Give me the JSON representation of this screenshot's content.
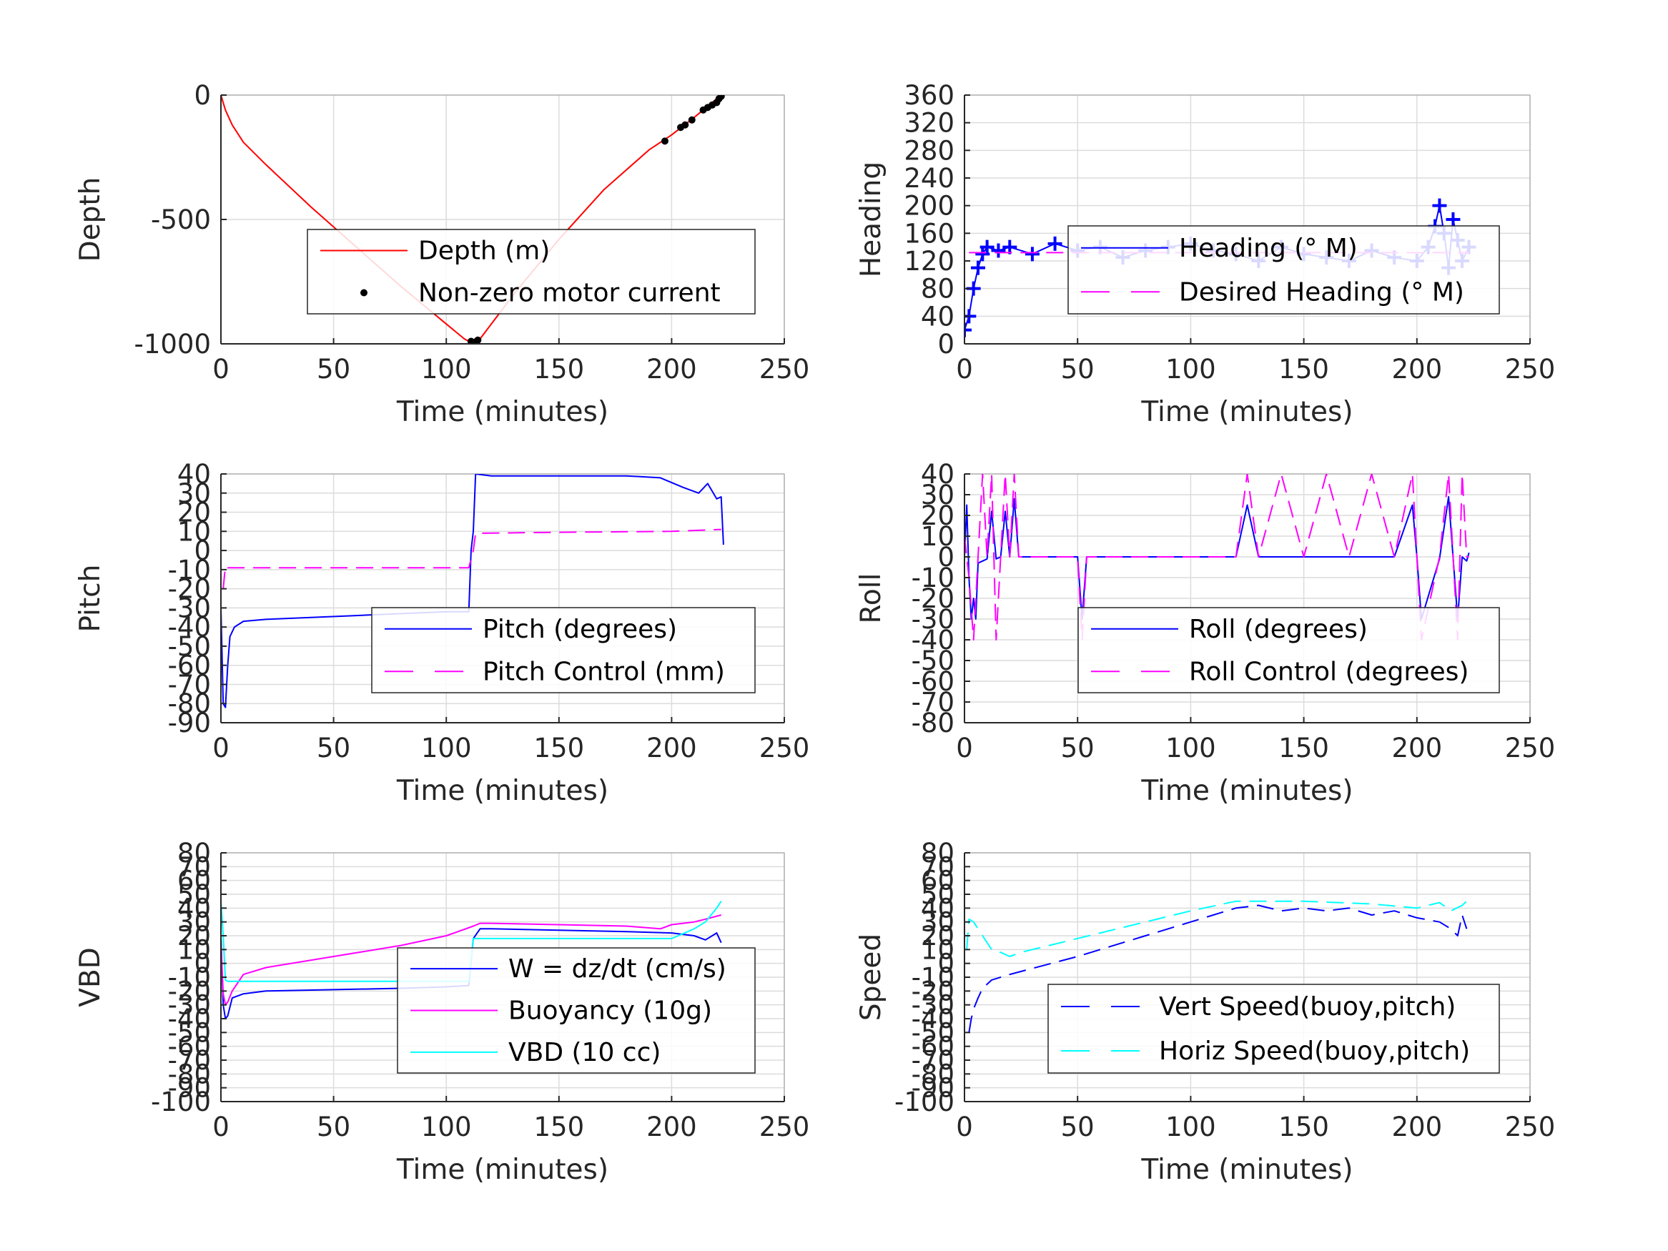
{
  "chart_data": [
    {
      "id": "depth",
      "type": "line",
      "xlabel": "Time (minutes)",
      "ylabel": "Depth",
      "xlim": [
        0,
        250
      ],
      "ylim": [
        -1000,
        0
      ],
      "xticks": [
        0,
        50,
        100,
        150,
        200,
        250
      ],
      "yticks": [
        -1000,
        -500,
        0
      ],
      "ytick_labels": [
        "-1000",
        "-500",
        "0"
      ],
      "grid": true,
      "legend_position": "lower-right",
      "series": [
        {
          "name": "Depth (m)",
          "color": "#ff0000",
          "style": "solid",
          "marker": "none",
          "x": [
            0,
            2,
            5,
            10,
            20,
            40,
            60,
            80,
            100,
            108,
            112,
            115,
            130,
            150,
            170,
            190,
            200,
            210,
            222
          ],
          "y": [
            0,
            -60,
            -120,
            -190,
            -280,
            -450,
            -610,
            -770,
            -920,
            -980,
            -1000,
            -980,
            -800,
            -580,
            -380,
            -220,
            -160,
            -90,
            0
          ]
        },
        {
          "name": "Non-zero motor current",
          "color": "#000000",
          "style": "none",
          "marker": "dot",
          "x": [
            111,
            112,
            113,
            114,
            197,
            204,
            206,
            209,
            214,
            216,
            218,
            220,
            221,
            222
          ],
          "y": [
            -990,
            -995,
            -992,
            -985,
            -185,
            -130,
            -120,
            -100,
            -60,
            -50,
            -40,
            -30,
            -15,
            -5
          ]
        }
      ]
    },
    {
      "id": "heading",
      "type": "line",
      "xlabel": "Time (minutes)",
      "ylabel": "Heading",
      "xlim": [
        0,
        250
      ],
      "ylim": [
        0,
        360
      ],
      "xticks": [
        0,
        50,
        100,
        150,
        200,
        250
      ],
      "yticks": [
        0,
        40,
        80,
        120,
        160,
        200,
        240,
        280,
        320,
        360
      ],
      "ytick_labels": [
        "0",
        "40",
        "80",
        "120",
        "160",
        "200",
        "240",
        "280",
        "320",
        "360"
      ],
      "grid": true,
      "legend_position": "upper-right",
      "series": [
        {
          "name": "Heading (° M)",
          "color": "#0000ff",
          "style": "solid",
          "marker": "plus",
          "x": [
            0,
            2,
            4,
            6,
            8,
            10,
            15,
            20,
            30,
            40,
            50,
            60,
            70,
            80,
            90,
            100,
            110,
            120,
            130,
            140,
            150,
            160,
            170,
            180,
            190,
            200,
            205,
            208,
            210,
            212,
            214,
            216,
            218,
            220,
            223
          ],
          "y": [
            20,
            40,
            80,
            110,
            130,
            140,
            135,
            140,
            130,
            145,
            135,
            140,
            125,
            135,
            140,
            145,
            135,
            130,
            120,
            140,
            130,
            125,
            120,
            135,
            125,
            120,
            140,
            170,
            200,
            160,
            110,
            180,
            150,
            120,
            140
          ]
        },
        {
          "name": "Desired Heading (° M)",
          "color": "#ff00ff",
          "style": "dashed",
          "marker": "none",
          "x": [
            2,
            223
          ],
          "y": [
            132,
            132
          ]
        }
      ]
    },
    {
      "id": "pitch",
      "type": "line",
      "xlabel": "Time (minutes)",
      "ylabel": "Pitch",
      "xlim": [
        0,
        250
      ],
      "ylim": [
        -90,
        40
      ],
      "xticks": [
        0,
        50,
        100,
        150,
        200,
        250
      ],
      "yticks": [
        -90,
        -80,
        -70,
        -60,
        -50,
        -40,
        -30,
        -20,
        -10,
        0,
        10,
        20,
        30,
        40
      ],
      "ytick_labels": [
        "-90",
        "-80",
        "-70",
        "-60",
        "-50",
        "-40",
        "-30",
        "-20",
        "-10",
        "0",
        "10",
        "20",
        "30",
        "40"
      ],
      "grid": true,
      "legend_position": "lower-right",
      "series": [
        {
          "name": "Pitch (degrees)",
          "color": "#0000ff",
          "style": "solid",
          "marker": "none",
          "x": [
            0,
            1,
            2,
            3,
            4,
            6,
            10,
            20,
            40,
            60,
            80,
            100,
            110,
            111,
            112,
            113,
            120,
            140,
            160,
            180,
            195,
            205,
            212,
            216,
            220,
            222,
            223
          ],
          "y": [
            -30,
            -80,
            -82,
            -60,
            -45,
            -40,
            -37,
            -36,
            -35,
            -34,
            -33,
            -32,
            -32,
            0,
            10,
            40,
            39,
            39,
            39,
            39,
            38,
            33,
            30,
            35,
            27,
            28,
            3
          ]
        },
        {
          "name": "Pitch Control (mm)",
          "color": "#ff00ff",
          "style": "dashed",
          "marker": "none",
          "x": [
            1,
            2,
            3,
            10,
            50,
            100,
            110,
            112,
            113,
            150,
            200,
            222
          ],
          "y": [
            -20,
            -8,
            -9,
            -9,
            -9,
            -9,
            -9,
            0,
            9,
            9.5,
            10,
            11
          ]
        }
      ]
    },
    {
      "id": "roll",
      "type": "line",
      "xlabel": "Time (minutes)",
      "ylabel": "Roll",
      "xlim": [
        0,
        250
      ],
      "ylim": [
        -80,
        40
      ],
      "xticks": [
        0,
        50,
        100,
        150,
        200,
        250
      ],
      "yticks": [
        -80,
        -70,
        -60,
        -50,
        -40,
        -30,
        -20,
        -10,
        0,
        10,
        20,
        30,
        40
      ],
      "ytick_labels": [
        "-80",
        "-70",
        "-60",
        "-50",
        "-40",
        "-30",
        "-20",
        "-10",
        "0",
        "10",
        "20",
        "30",
        "40"
      ],
      "grid": true,
      "legend_position": "lower-right",
      "series": [
        {
          "name": "Roll (degrees)",
          "color": "#0000ff",
          "style": "solid",
          "marker": "none",
          "x": [
            0,
            1,
            2,
            3,
            4,
            5,
            6,
            8,
            10,
            12,
            14,
            16,
            18,
            20,
            22,
            24,
            26,
            30,
            40,
            50,
            52,
            54,
            60,
            80,
            100,
            120,
            125,
            130,
            140,
            150,
            160,
            170,
            180,
            190,
            198,
            200,
            202,
            210,
            214,
            218,
            220,
            222,
            223
          ],
          "y": [
            0,
            25,
            -10,
            -30,
            -20,
            -30,
            -3,
            -2,
            -1,
            22,
            -1,
            0,
            22,
            0,
            28,
            0,
            0,
            0,
            0,
            0,
            -30,
            0,
            0,
            0,
            0,
            0,
            25,
            0,
            0,
            0,
            0,
            0,
            0,
            0,
            25,
            0,
            -30,
            -1,
            29,
            -30,
            0,
            -2,
            2
          ]
        },
        {
          "name": "Roll Control (degrees)",
          "color": "#ff00ff",
          "style": "dashed",
          "marker": "none",
          "x": [
            0,
            2,
            4,
            6,
            8,
            10,
            12,
            14,
            16,
            18,
            20,
            22,
            24,
            30,
            40,
            50,
            52,
            54,
            60,
            80,
            100,
            120,
            125,
            130,
            140,
            150,
            160,
            170,
            180,
            190,
            198,
            200,
            202,
            210,
            214,
            218,
            220,
            222,
            223
          ],
          "y": [
            10,
            -10,
            -40,
            0,
            40,
            0,
            40,
            -40,
            0,
            40,
            0,
            40,
            0,
            0,
            0,
            0,
            -40,
            0,
            0,
            0,
            0,
            0,
            40,
            0,
            40,
            0,
            40,
            0,
            40,
            0,
            40,
            0,
            -40,
            0,
            40,
            -40,
            40,
            0,
            0
          ]
        }
      ]
    },
    {
      "id": "vbd",
      "type": "line",
      "xlabel": "Time (minutes)",
      "ylabel": "VBD",
      "xlim": [
        0,
        250
      ],
      "ylim": [
        -100,
        80
      ],
      "xticks": [
        0,
        50,
        100,
        150,
        200,
        250
      ],
      "yticks": [
        -100,
        -90,
        -80,
        -70,
        -60,
        -50,
        -40,
        -30,
        -20,
        -10,
        0,
        10,
        20,
        30,
        40,
        50,
        60,
        70,
        80
      ],
      "ytick_labels": [
        "-100",
        "-90",
        "-80",
        "-70",
        "-60",
        "-50",
        "-40",
        "-30",
        "-20",
        "-10",
        "0",
        "10",
        "20",
        "30",
        "40",
        "50",
        "60",
        "70",
        "80"
      ],
      "grid": true,
      "legend_position": "lower-right",
      "series": [
        {
          "name": "W = dz/dt (cm/s)",
          "color": "#0000ff",
          "style": "solid",
          "marker": "none",
          "x": [
            0,
            1,
            2,
            3,
            5,
            10,
            20,
            50,
            80,
            100,
            110,
            112,
            115,
            120,
            150,
            180,
            200,
            210,
            215,
            220,
            222
          ],
          "y": [
            20,
            -30,
            -40,
            -38,
            -25,
            -22,
            -20,
            -19,
            -18,
            -17,
            -16,
            18,
            25,
            25,
            24,
            23,
            22,
            20,
            17,
            22,
            15
          ]
        },
        {
          "name": "Buoyancy (10g)",
          "color": "#ff00ff",
          "style": "solid",
          "marker": "none",
          "x": [
            0,
            1,
            2,
            3,
            5,
            10,
            20,
            50,
            80,
            100,
            112,
            115,
            120,
            150,
            180,
            195,
            200,
            210,
            215,
            222
          ],
          "y": [
            15,
            -22,
            -30,
            -28,
            -20,
            -8,
            -3,
            5,
            13,
            20,
            27,
            29,
            29,
            28,
            27,
            25,
            28,
            30,
            32,
            35
          ]
        },
        {
          "name": "VBD (10 cc)",
          "color": "#00ffff",
          "style": "solid",
          "marker": "none",
          "x": [
            0,
            1,
            2,
            3,
            5,
            10,
            50,
            100,
            110,
            112,
            113,
            150,
            200,
            210,
            215,
            220,
            222
          ],
          "y": [
            45,
            20,
            -12,
            -13,
            -13,
            -13,
            -13,
            -13,
            -13,
            18,
            18,
            18,
            18,
            25,
            30,
            40,
            45
          ]
        }
      ]
    },
    {
      "id": "speed",
      "type": "line",
      "xlabel": "Time (minutes)",
      "ylabel": "Speed",
      "xlim": [
        0,
        250
      ],
      "ylim": [
        -100,
        80
      ],
      "xticks": [
        0,
        50,
        100,
        150,
        200,
        250
      ],
      "yticks": [
        -100,
        -90,
        -80,
        -70,
        -60,
        -50,
        -40,
        -30,
        -20,
        -10,
        0,
        10,
        20,
        30,
        40,
        50,
        60,
        70,
        80
      ],
      "ytick_labels": [
        "-100",
        "-90",
        "-80",
        "-70",
        "-60",
        "-50",
        "-40",
        "-30",
        "-20",
        "-10",
        "0",
        "10",
        "20",
        "30",
        "40",
        "50",
        "60",
        "70",
        "80"
      ],
      "grid": true,
      "legend_position": "lower-right",
      "series": [
        {
          "name": "Vert Speed(buoy,pitch)",
          "color": "#0000ff",
          "style": "dashed",
          "marker": "none",
          "x": [
            2,
            3,
            4,
            6,
            8,
            12,
            20,
            50,
            80,
            100,
            120,
            130,
            140,
            150,
            160,
            170,
            180,
            190,
            200,
            210,
            215,
            218,
            220,
            222
          ],
          "y": [
            -50,
            -40,
            -33,
            -25,
            -18,
            -12,
            -8,
            5,
            20,
            30,
            40,
            42,
            38,
            40,
            38,
            40,
            35,
            38,
            33,
            30,
            25,
            20,
            35,
            25
          ]
        },
        {
          "name": "Horiz Speed(buoy,pitch)",
          "color": "#00ffff",
          "style": "dashed",
          "marker": "none",
          "x": [
            1,
            2,
            4,
            8,
            12,
            16,
            20,
            25,
            40,
            60,
            80,
            100,
            120,
            150,
            180,
            200,
            210,
            215,
            220,
            222
          ],
          "y": [
            10,
            32,
            30,
            20,
            10,
            8,
            5,
            8,
            14,
            22,
            30,
            38,
            45,
            45,
            43,
            40,
            44,
            38,
            42,
            45
          ]
        }
      ]
    }
  ]
}
